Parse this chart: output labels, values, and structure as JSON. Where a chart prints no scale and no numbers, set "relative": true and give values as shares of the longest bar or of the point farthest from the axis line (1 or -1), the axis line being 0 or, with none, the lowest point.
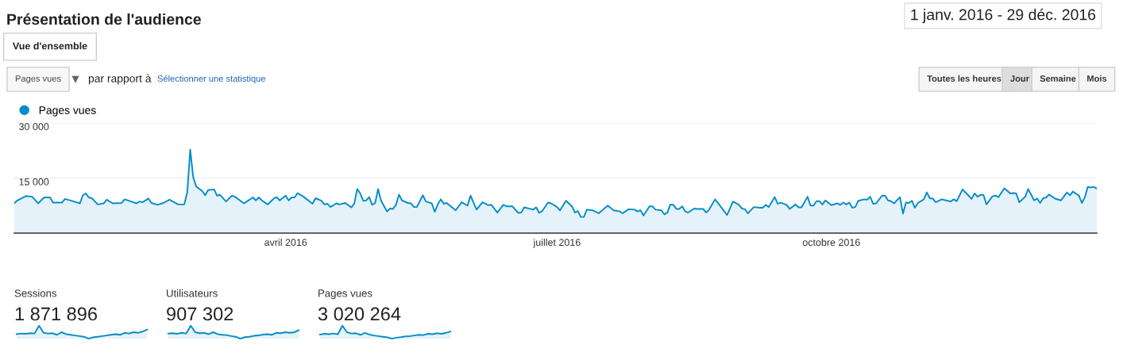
{
  "chart_data": [
    {
      "type": "area",
      "title": "Présentation de l'audience",
      "subtitle": "1 janv. 2016 - 29 déc. 2016",
      "annotations": [
        "Vue d'ensemble",
        "Pages vues",
        "par rapport à",
        "Sélectionner une statistique",
        "Toutes les heures",
        "Jour",
        "Semaine",
        "Mois"
      ],
      "x": [
        "2016-01-01",
        "2016-01-02",
        "2016-01-05",
        "2016-01-07",
        "2016-01-09",
        "2016-01-11",
        "2016-01-13",
        "2016-01-14",
        "2016-01-17",
        "2016-01-18",
        "2016-01-21",
        "2016-01-23",
        "2016-01-24",
        "2016-01-25",
        "2016-01-26",
        "2016-01-27",
        "2016-01-29",
        "2016-01-31",
        "2016-02-01",
        "2016-02-03",
        "2016-02-06",
        "2016-02-07",
        "2016-02-11",
        "2016-02-12",
        "2016-02-13",
        "2016-02-15",
        "2016-02-16",
        "2016-02-18",
        "2016-02-20",
        "2016-02-22",
        "2016-02-25",
        "2016-02-27",
        "2016-02-28",
        "2016-02-29",
        "2016-03-01",
        "2016-03-02",
        "2016-03-04",
        "2016-03-05",
        "2016-03-06",
        "2016-03-08",
        "2016-03-09",
        "2016-03-10",
        "2016-03-12",
        "2016-03-14",
        "2016-03-15",
        "2016-03-18",
        "2016-03-19",
        "2016-03-21",
        "2016-03-22",
        "2016-03-23",
        "2016-03-24",
        "2016-03-26",
        "2016-03-28",
        "2016-03-29",
        "2016-03-30",
        "2016-04-01",
        "2016-04-02",
        "2016-04-03",
        "2016-04-04",
        "2016-04-05",
        "2016-04-07",
        "2016-04-10",
        "2016-04-11",
        "2016-04-13",
        "2016-04-14",
        "2016-04-15",
        "2016-04-16",
        "2016-04-18",
        "2016-04-19",
        "2016-04-21",
        "2016-04-23",
        "2016-04-24",
        "2016-04-25",
        "2016-04-26",
        "2016-04-27",
        "2016-04-28",
        "2016-04-29",
        "2016-04-30",
        "2016-05-01",
        "2016-05-02",
        "2016-05-03",
        "2016-05-05",
        "2016-05-06",
        "2016-05-07",
        "2016-05-08",
        "2016-05-09",
        "2016-05-10",
        "2016-05-12",
        "2016-05-13",
        "2016-05-14",
        "2016-05-15",
        "2016-05-17",
        "2016-05-18",
        "2016-05-20",
        "2016-05-21",
        "2016-05-22",
        "2016-05-23",
        "2016-05-24",
        "2016-05-25",
        "2016-05-28",
        "2016-05-30",
        "2016-06-01",
        "2016-06-02",
        "2016-06-04",
        "2016-06-06",
        "2016-06-08",
        "2016-06-09",
        "2016-06-11",
        "2016-06-13",
        "2016-06-14",
        "2016-06-16",
        "2016-06-18",
        "2016-06-19",
        "2016-06-20",
        "2016-06-23",
        "2016-06-24",
        "2016-06-25",
        "2016-06-26",
        "2016-06-28",
        "2016-06-29",
        "2016-07-01",
        "2016-07-02",
        "2016-07-04",
        "2016-07-06",
        "2016-07-07",
        "2016-07-08",
        "2016-07-09",
        "2016-07-10",
        "2016-07-11",
        "2016-07-13",
        "2016-07-15",
        "2016-07-18",
        "2016-07-20",
        "2016-07-22",
        "2016-07-23",
        "2016-07-25",
        "2016-07-27",
        "2016-07-28",
        "2016-07-29",
        "2016-07-30",
        "2016-08-01",
        "2016-08-02",
        "2016-08-03",
        "2016-08-05",
        "2016-08-06",
        "2016-08-07",
        "2016-08-08",
        "2016-08-09",
        "2016-08-10",
        "2016-08-11",
        "2016-08-12",
        "2016-08-13",
        "2016-08-14",
        "2016-08-16",
        "2016-08-17",
        "2016-08-19",
        "2016-08-20",
        "2016-08-21",
        "2016-08-23",
        "2016-08-25",
        "2016-08-26",
        "2016-08-27",
        "2016-08-29",
        "2016-08-31",
        "2016-09-01",
        "2016-09-02",
        "2016-09-03",
        "2016-09-05",
        "2016-09-07",
        "2016-09-08",
        "2016-09-09",
        "2016-09-10",
        "2016-09-12",
        "2016-09-13",
        "2016-09-14",
        "2016-09-16",
        "2016-09-17",
        "2016-09-19",
        "2016-09-20",
        "2016-09-21",
        "2016-09-23",
        "2016-09-24",
        "2016-09-25",
        "2016-09-26",
        "2016-09-27",
        "2016-09-28",
        "2016-09-29",
        "2016-10-01",
        "2016-10-03",
        "2016-10-04",
        "2016-10-05",
        "2016-10-06",
        "2016-10-07",
        "2016-10-08",
        "2016-10-09",
        "2016-10-10",
        "2016-10-12",
        "2016-10-13",
        "2016-10-14",
        "2016-10-15",
        "2016-10-16",
        "2016-10-18",
        "2016-10-19",
        "2016-10-20",
        "2016-10-21",
        "2016-10-22",
        "2016-10-24",
        "2016-10-25",
        "2016-10-26",
        "2016-10-27",
        "2016-10-28",
        "2016-10-29",
        "2016-10-30",
        "2016-11-01",
        "2016-11-02",
        "2016-11-03",
        "2016-11-04",
        "2016-11-05",
        "2016-11-07",
        "2016-11-09",
        "2016-11-10",
        "2016-11-11",
        "2016-11-12",
        "2016-11-14",
        "2016-11-16",
        "2016-11-17",
        "2016-11-18",
        "2016-11-19",
        "2016-11-20",
        "2016-11-21",
        "2016-11-22",
        "2016-11-24",
        "2016-11-25",
        "2016-11-26",
        "2016-11-28",
        "2016-11-30",
        "2016-12-01",
        "2016-12-02",
        "2016-12-03",
        "2016-12-05",
        "2016-12-06",
        "2016-12-08",
        "2016-12-09",
        "2016-12-10",
        "2016-12-11",
        "2016-12-12",
        "2016-12-13",
        "2016-12-15",
        "2016-12-17",
        "2016-12-19",
        "2016-12-20",
        "2016-12-21",
        "2016-12-23",
        "2016-12-24",
        "2016-12-25",
        "2016-12-26",
        "2016-12-27",
        "2016-12-28",
        "2016-12-29"
      ],
      "series": [
        {
          "name": "Pages vues",
          "color": "#058dc7",
          "values": [
            8100,
            8900,
            10100,
            9900,
            8100,
            9700,
            9700,
            8300,
            8300,
            9300,
            8600,
            8100,
            10300,
            10800,
            9700,
            9500,
            7800,
            8100,
            9100,
            8100,
            8200,
            9200,
            8100,
            8600,
            8400,
            9400,
            8200,
            7700,
            8200,
            9100,
            7800,
            7800,
            11100,
            22700,
            15200,
            12700,
            11500,
            10300,
            11700,
            11900,
            10200,
            10400,
            8600,
            10200,
            9900,
            8100,
            8600,
            9700,
            8900,
            9700,
            8900,
            7800,
            9400,
            9800,
            8900,
            10200,
            8900,
            9700,
            9700,
            10900,
            9900,
            8000,
            9500,
            8800,
            7800,
            8000,
            7100,
            8100,
            7800,
            8200,
            7000,
            8000,
            12000,
            10800,
            8800,
            8900,
            9800,
            7700,
            8200,
            12000,
            8800,
            5900,
            6700,
            6600,
            7700,
            10500,
            8900,
            8200,
            8100,
            7100,
            7100,
            10300,
            8600,
            8100,
            5800,
            7800,
            9200,
            8000,
            8200,
            6200,
            8400,
            7500,
            10200,
            6400,
            8400,
            7600,
            7700,
            5600,
            7700,
            7300,
            7300,
            5500,
            5600,
            7000,
            6400,
            7000,
            5500,
            6000,
            8300,
            8100,
            7100,
            6200,
            8800,
            7300,
            5600,
            6000,
            4400,
            4400,
            6400,
            6200,
            5400,
            7500,
            6200,
            5900,
            5400,
            6500,
            6400,
            5900,
            6200,
            4800,
            7300,
            7300,
            6400,
            6200,
            5100,
            5600,
            7800,
            7700,
            6600,
            6600,
            7300,
            5900,
            5600,
            6700,
            6600,
            6600,
            5600,
            6400,
            9200,
            7100,
            6000,
            4900,
            8600,
            7700,
            6700,
            6500,
            5400,
            7100,
            6900,
            6900,
            7700,
            7100,
            9800,
            8000,
            8300,
            7700,
            6600,
            7800,
            7000,
            7000,
            9900,
            7500,
            7500,
            8700,
            8700,
            7800,
            8900,
            7600,
            8100,
            7700,
            8300,
            7800,
            8300,
            6900,
            7100,
            8800,
            9200,
            9100,
            9900,
            8000,
            8100,
            10200,
            10200,
            8900,
            8700,
            8100,
            9800,
            5300,
            8300,
            8200,
            8800,
            6900,
            8200,
            9200,
            11100,
            9500,
            9400,
            8400,
            9200,
            8800,
            8600,
            9200,
            8700,
            11900,
            10200,
            9300,
            10800,
            9900,
            10400,
            10400,
            7800,
            10000,
            10200,
            9800,
            12200,
            10800,
            10900,
            10800,
            8400,
            9900,
            12000,
            8900,
            9400,
            8200,
            9500,
            9700,
            10500,
            9400,
            8900,
            11100,
            10300,
            11300,
            10200,
            8200,
            9800,
            12600,
            12400,
            12600,
            12100
          ]
        }
      ],
      "xlim": [
        "2016-01-01",
        "2016-12-29"
      ],
      "xticks": [
        {
          "value": "2016-04-01",
          "label": "avril 2016"
        },
        {
          "value": "2016-07-01",
          "label": "juillet 2016"
        },
        {
          "value": "2016-10-01",
          "label": "octobre 2016"
        }
      ],
      "ylim": [
        0,
        30000
      ],
      "yticks": [
        {
          "value": 15000,
          "label": "15 000"
        },
        {
          "value": 30000,
          "label": "30 000"
        }
      ],
      "grid": "y",
      "legend": "top left"
    },
    {
      "type": "area",
      "relative": true,
      "title": "Sessions",
      "annotations": [
        "1 871 896"
      ],
      "categories": [
        null,
        null,
        null,
        null,
        null,
        null,
        null,
        null,
        null,
        null,
        null,
        null,
        null,
        null,
        null,
        null,
        null,
        null,
        null,
        null,
        null,
        null,
        null,
        null,
        null,
        null,
        null,
        null,
        null,
        null
      ],
      "series": [
        {
          "color": "#058dc7",
          "values": [
            0.35,
            0.4,
            0.38,
            0.42,
            0.4,
            1.0,
            0.45,
            0.4,
            0.42,
            0.3,
            0.5,
            0.35,
            0.3,
            0.25,
            0.2,
            0.15,
            0.0,
            0.1,
            0.15,
            0.2,
            0.25,
            0.3,
            0.35,
            0.3,
            0.45,
            0.4,
            0.5,
            0.45,
            0.55,
            0.7
          ]
        }
      ]
    },
    {
      "type": "area",
      "relative": true,
      "title": "Utilisateurs",
      "annotations": [
        "907 302"
      ],
      "categories": [
        null,
        null,
        null,
        null,
        null,
        null,
        null,
        null,
        null,
        null,
        null,
        null,
        null,
        null,
        null,
        null,
        null,
        null,
        null,
        null,
        null,
        null,
        null,
        null,
        null,
        null,
        null,
        null,
        null,
        null
      ],
      "series": [
        {
          "color": "#058dc7",
          "values": [
            0.4,
            0.42,
            0.38,
            0.45,
            0.4,
            1.0,
            0.5,
            0.42,
            0.45,
            0.35,
            0.5,
            0.35,
            0.3,
            0.28,
            0.2,
            0.15,
            0.0,
            0.12,
            0.15,
            0.22,
            0.25,
            0.32,
            0.35,
            0.3,
            0.45,
            0.42,
            0.5,
            0.45,
            0.5,
            0.65
          ]
        }
      ]
    },
    {
      "type": "area",
      "relative": true,
      "title": "Pages vues",
      "annotations": [
        "3 020 264"
      ],
      "categories": [
        null,
        null,
        null,
        null,
        null,
        null,
        null,
        null,
        null,
        null,
        null,
        null,
        null,
        null,
        null,
        null,
        null,
        null,
        null,
        null,
        null,
        null,
        null,
        null,
        null,
        null,
        null,
        null,
        null,
        null
      ],
      "series": [
        {
          "color": "#058dc7",
          "values": [
            0.32,
            0.38,
            0.35,
            0.4,
            0.35,
            1.0,
            0.5,
            0.4,
            0.42,
            0.3,
            0.45,
            0.32,
            0.25,
            0.2,
            0.15,
            0.1,
            0.0,
            0.08,
            0.12,
            0.18,
            0.2,
            0.25,
            0.3,
            0.28,
            0.38,
            0.35,
            0.42,
            0.38,
            0.45,
            0.55
          ]
        }
      ]
    }
  ]
}
